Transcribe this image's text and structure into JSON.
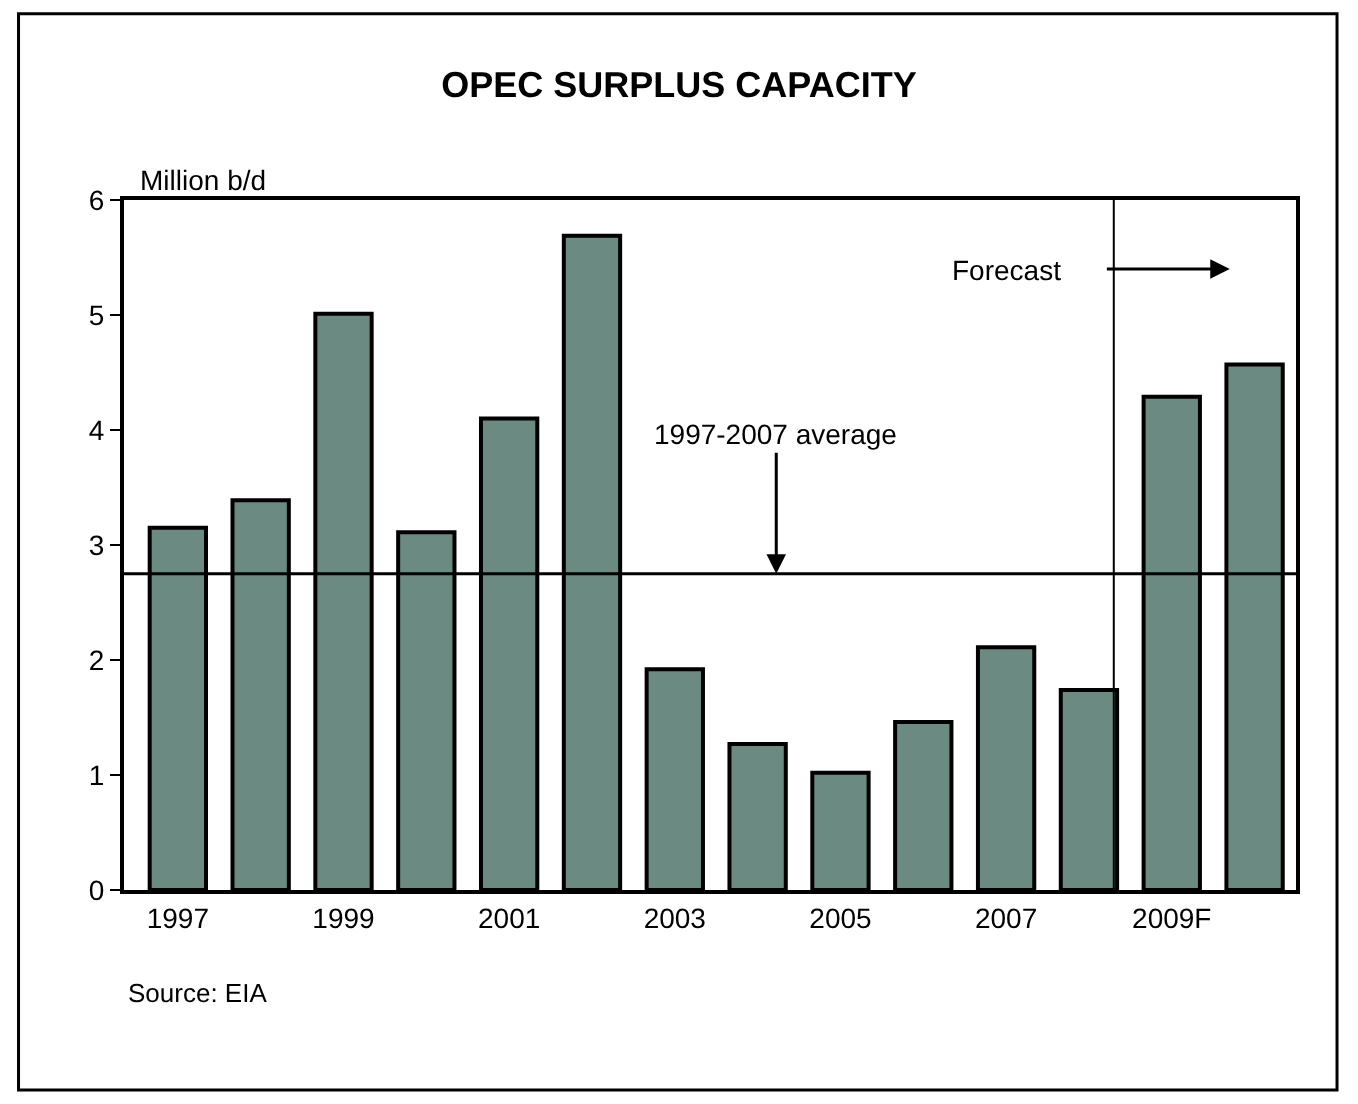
{
  "chart_data": {
    "type": "bar",
    "title": "OPEC SURPLUS CAPACITY",
    "ylabel": "Million b/d",
    "x": [
      1997,
      1998,
      1999,
      2000,
      2001,
      2002,
      2003,
      2004,
      2005,
      2006,
      2007,
      2008,
      2009,
      2010
    ],
    "values": [
      3.15,
      3.39,
      5.01,
      3.11,
      4.1,
      5.69,
      1.92,
      1.27,
      1.02,
      1.46,
      2.11,
      1.74,
      4.29,
      4.57
    ],
    "color": "#6a8a82",
    "xlim": [
      1996.35,
      2010.5
    ],
    "xticks": [
      1997,
      1999,
      2001,
      2003,
      2005,
      {
        "value": 2007,
        "label": "2007"
      },
      {
        "value": 2009,
        "label": "2009F"
      }
    ],
    "ylim": [
      0,
      6
    ],
    "yticks": [
      0,
      1,
      2,
      3,
      4,
      5,
      6
    ],
    "ref_lines": [
      {
        "axis": "y",
        "value": 2.75,
        "label": "1997-2007 average",
        "color": "#000000"
      },
      {
        "axis": "x",
        "value": 2008.3,
        "label": "Forecast",
        "color": "#000000"
      }
    ],
    "annotations": [
      "Source: EIA"
    ]
  }
}
